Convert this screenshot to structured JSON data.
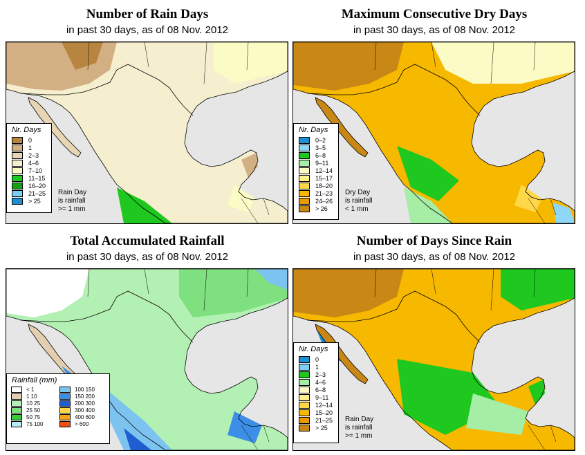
{
  "panels": [
    {
      "title": "Number of Rain Days",
      "subtitle": "in past 30 days, as of  08 Nov. 2012",
      "legend_title": "Nr. Days",
      "legend": [
        {
          "label": "0",
          "color": "#b88540"
        },
        {
          "label": "1",
          "color": "#d3b083"
        },
        {
          "label": "2–3",
          "color": "#e8d5b3"
        },
        {
          "label": "4–6",
          "color": "#f6efcf"
        },
        {
          "label": "7–10",
          "color": "#fbfbc5"
        },
        {
          "label": "11–15",
          "color": "#1ec81e"
        },
        {
          "label": "16–20",
          "color": "#14a014"
        },
        {
          "label": "21–25",
          "color": "#7dcdf5"
        },
        {
          "label": "> 25",
          "color": "#1e8fd0"
        }
      ],
      "note": [
        "Rain Day",
        "is rainfall",
        ">= 1 mm"
      ]
    },
    {
      "title": "Maximum Consecutive Dry Days",
      "subtitle": "in past 30 days, as of  08 Nov. 2012",
      "legend_title": "Nr. Days",
      "legend": [
        {
          "label": "0–2",
          "color": "#1e8fd0"
        },
        {
          "label": "3–5",
          "color": "#8fd7f7"
        },
        {
          "label": "6–8",
          "color": "#1ec81e"
        },
        {
          "label": "9–11",
          "color": "#a6eda6"
        },
        {
          "label": "12–14",
          "color": "#fbfbc5"
        },
        {
          "label": "15–17",
          "color": "#fff08a"
        },
        {
          "label": "18–20",
          "color": "#ffd84a"
        },
        {
          "label": "21–23",
          "color": "#f7b800"
        },
        {
          "label": "24–26",
          "color": "#e89a00"
        },
        {
          "label": "> 26",
          "color": "#c98715"
        }
      ],
      "note": [
        "Dry Day",
        "is rainfall",
        "< 1 mm"
      ]
    },
    {
      "title": "Total Accumulated Rainfall",
      "subtitle": "in past 30 days, as of  08 Nov. 2012",
      "legend_title": "Rainfall (mm)",
      "legend": [
        {
          "label": "< 1",
          "color": "#ffffff"
        },
        {
          "label": "1    10",
          "color": "#e3ceb0"
        },
        {
          "label": "10    25",
          "color": "#b3f0b3"
        },
        {
          "label": "25    50",
          "color": "#7fe07f"
        },
        {
          "label": "50    75",
          "color": "#3cc83c"
        },
        {
          "label": "75  100",
          "color": "#b9e8f7"
        },
        {
          "label": "100  150",
          "color": "#7cc3f0"
        },
        {
          "label": "150  200",
          "color": "#3c8ee6"
        },
        {
          "label": "200  300",
          "color": "#1f5ed1"
        },
        {
          "label": "300  400",
          "color": "#ffd84a"
        },
        {
          "label": "400  600",
          "color": "#f7a21b"
        },
        {
          "label": "> 600",
          "color": "#f04e14"
        }
      ]
    },
    {
      "title": "Number of Days Since Rain",
      "subtitle": "in past 30 days, as of  08 Nov. 2012",
      "legend_title": "Nr. Days",
      "legend": [
        {
          "label": "0",
          "color": "#1e8fd0"
        },
        {
          "label": "1",
          "color": "#7dcdf5"
        },
        {
          "label": "2–3",
          "color": "#1ec81e"
        },
        {
          "label": "4–6",
          "color": "#a6eda6"
        },
        {
          "label": "6–8",
          "color": "#fbfbc5"
        },
        {
          "label": "9–11",
          "color": "#fff08a"
        },
        {
          "label": "12–14",
          "color": "#ffd84a"
        },
        {
          "label": "15–20",
          "color": "#f7b800"
        },
        {
          "label": "21–25",
          "color": "#e89a00"
        },
        {
          "label": "> 25",
          "color": "#c98715"
        }
      ],
      "note": [
        "Rain Day",
        "is rainfall",
        ">= 1 mm"
      ]
    }
  ]
}
